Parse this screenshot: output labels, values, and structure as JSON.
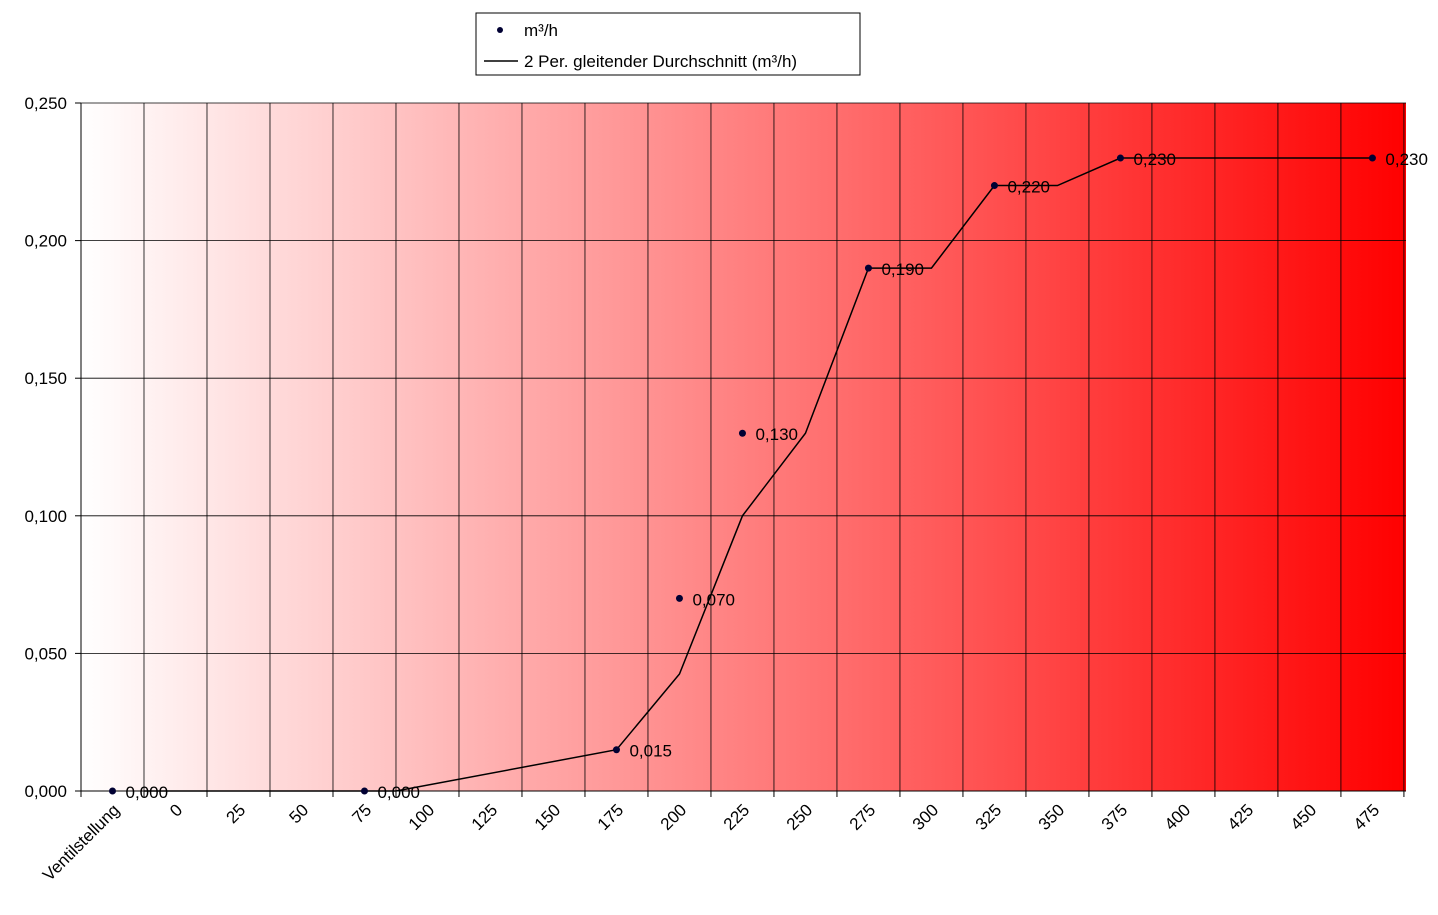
{
  "chart_data": {
    "type": "line",
    "categories": [
      "Ventilstellung",
      "0",
      "25",
      "50",
      "75",
      "100",
      "125",
      "150",
      "175",
      "200",
      "225",
      "250",
      "275",
      "300",
      "325",
      "350",
      "375",
      "400",
      "425",
      "450",
      "475"
    ],
    "ylim": [
      0,
      0.25
    ],
    "yticks": [
      "0,000",
      "0,050",
      "0,100",
      "0,150",
      "0,200",
      "0,250"
    ],
    "series": [
      {
        "name": "m³/h",
        "kind": "points",
        "color": "#000033",
        "points": [
          {
            "x": 0.5,
            "y": 0.0,
            "label": "0,000"
          },
          {
            "x": 4.5,
            "y": 0.0,
            "label": "0,000"
          },
          {
            "x": 8.5,
            "y": 0.015,
            "label": "0,015"
          },
          {
            "x": 9.5,
            "y": 0.07,
            "label": "0,070"
          },
          {
            "x": 10.5,
            "y": 0.13,
            "label": "0,130"
          },
          {
            "x": 12.5,
            "y": 0.19,
            "label": "0,190"
          },
          {
            "x": 14.5,
            "y": 0.22,
            "label": "0,220"
          },
          {
            "x": 16.5,
            "y": 0.23,
            "label": "0,230"
          },
          {
            "x": 20.5,
            "y": 0.23,
            "label": "0,230"
          }
        ]
      },
      {
        "name": "2 Per. gleitender Durchschnitt (m³/h)",
        "kind": "line",
        "color": "#000000",
        "points": [
          {
            "x": 1,
            "y": 0.0
          },
          {
            "x": 5,
            "y": 0.0
          },
          {
            "x": 8.5,
            "y": 0.015
          },
          {
            "x": 9.5,
            "y": 0.0425
          },
          {
            "x": 10.5,
            "y": 0.1
          },
          {
            "x": 11.5,
            "y": 0.13
          },
          {
            "x": 12.5,
            "y": 0.19
          },
          {
            "x": 13.5,
            "y": 0.19
          },
          {
            "x": 14.5,
            "y": 0.22
          },
          {
            "x": 15.5,
            "y": 0.22
          },
          {
            "x": 16.5,
            "y": 0.23
          },
          {
            "x": 20.5,
            "y": 0.23
          }
        ]
      }
    ],
    "grid": true,
    "legend_position": "top-center",
    "background_gradient": [
      "#ffffff",
      "#ff0000"
    ]
  }
}
